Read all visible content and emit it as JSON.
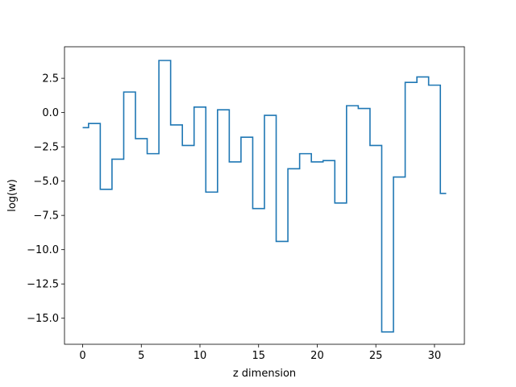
{
  "chart_data": {
    "type": "line",
    "drawstyle": "steps-mid",
    "title": "",
    "xlabel": "z dimension",
    "ylabel": "log(w)",
    "xlim": [
      -1.55,
      32.55
    ],
    "ylim": [
      -16.9,
      4.8
    ],
    "xticks": [
      0,
      5,
      10,
      15,
      20,
      25,
      30
    ],
    "xtick_labels": [
      "0",
      "5",
      "10",
      "15",
      "20",
      "25",
      "30"
    ],
    "yticks": [
      2.5,
      0,
      -2.5,
      -5,
      -7.5,
      -10,
      -12.5,
      -15
    ],
    "ytick_labels": [
      "2.5",
      "0.0",
      "−2.5",
      "−5.0",
      "−7.5",
      "−10.0",
      "−12.5",
      "−15.0"
    ],
    "grid": false,
    "legend": "none",
    "series": [
      {
        "color": "#1f77b4",
        "x": [
          0,
          1,
          2,
          3,
          4,
          5,
          6,
          7,
          8,
          9,
          10,
          11,
          12,
          13,
          14,
          15,
          16,
          17,
          18,
          19,
          20,
          21,
          22,
          23,
          24,
          25,
          26,
          27,
          28,
          29,
          30,
          31
        ],
        "y": [
          -1.1,
          -0.8,
          -5.6,
          -3.4,
          1.5,
          -1.9,
          -3.0,
          3.8,
          -0.9,
          -2.4,
          0.4,
          -5.8,
          0.2,
          -3.6,
          -1.8,
          -7.0,
          -0.2,
          -9.4,
          -4.1,
          -3.0,
          -3.6,
          -3.5,
          -6.6,
          0.5,
          0.3,
          -2.4,
          -16.0,
          -4.7,
          2.2,
          2.6,
          2.0,
          -5.9
        ]
      }
    ]
  }
}
